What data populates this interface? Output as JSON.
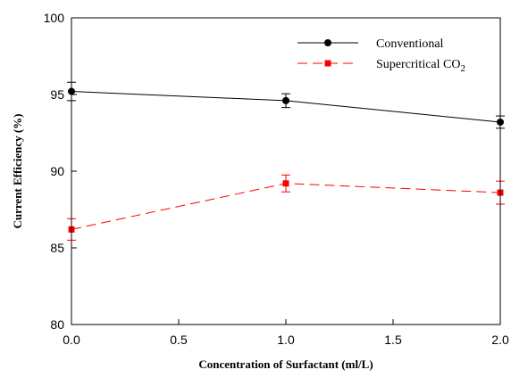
{
  "chart_data": {
    "type": "line",
    "xlabel": "Concentration of Surfactant (ml/L)",
    "ylabel": "Current Efficiency (%)",
    "xlim": [
      0.0,
      2.0
    ],
    "ylim": [
      80,
      100
    ],
    "xticks": [
      "0.0",
      "0.5",
      "1.0",
      "1.5",
      "2.0"
    ],
    "xtick_values": [
      0.0,
      0.5,
      1.0,
      1.5,
      2.0
    ],
    "yticks": [
      "80",
      "85",
      "90",
      "95",
      "100"
    ],
    "ytick_values": [
      80,
      85,
      90,
      95,
      100
    ],
    "grid": false,
    "legend_position": "top-right",
    "series": [
      {
        "name": "Conventional",
        "color": "#000000",
        "marker": "circle",
        "line_style": "solid",
        "x": [
          0.0,
          1.0,
          2.0
        ],
        "y": [
          95.2,
          94.6,
          93.2
        ],
        "error": [
          0.6,
          0.45,
          0.4
        ]
      },
      {
        "name": "Supercritical CO",
        "name_subscript": "2",
        "color": "#ff0000",
        "marker": "square",
        "line_style": "dashed",
        "x": [
          0.0,
          1.0,
          2.0
        ],
        "y": [
          86.2,
          89.2,
          88.6
        ],
        "error": [
          0.7,
          0.55,
          0.75
        ]
      }
    ]
  }
}
